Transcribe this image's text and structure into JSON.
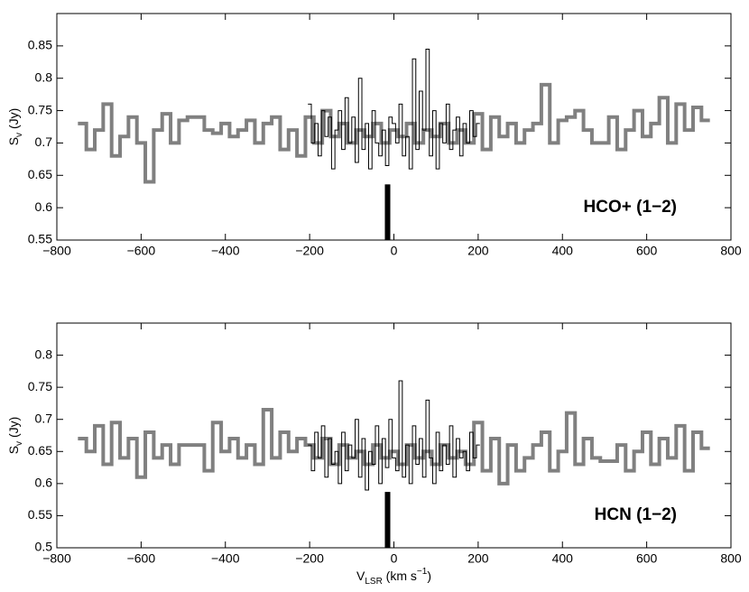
{
  "chart_data": [
    {
      "type": "step",
      "annotation": "HCO+ (1−2)",
      "y_label": {
        "main": "S",
        "sub": "v",
        "unit": " (Jy)"
      },
      "xlim": [
        -800,
        800
      ],
      "xticks": [
        {
          "value": -800,
          "label": "−800"
        },
        {
          "value": -600,
          "label": "−600"
        },
        {
          "value": -400,
          "label": "−400"
        },
        {
          "value": -200,
          "label": "−200"
        },
        0,
        200,
        400,
        600,
        800
      ],
      "ylim": [
        0.55,
        0.9
      ],
      "yticks": [
        0.55,
        0.6,
        0.65,
        0.7,
        0.75,
        0.8,
        0.85
      ],
      "bar": {
        "x": -15,
        "value": 0.636,
        "color": "#000000"
      },
      "series": [
        {
          "color": "#808080",
          "width": 4,
          "x": [
            -740,
            -720,
            -700,
            -680,
            -660,
            -640,
            -620,
            -600,
            -580,
            -560,
            -540,
            -520,
            -500,
            -480,
            -460,
            -440,
            -420,
            -400,
            -380,
            -360,
            -340,
            -320,
            -300,
            -280,
            -260,
            -240,
            -220,
            -200,
            -180,
            -160,
            -140,
            -120,
            -100,
            -80,
            -60,
            -40,
            -20,
            0,
            20,
            40,
            60,
            80,
            100,
            120,
            140,
            160,
            180,
            200,
            220,
            240,
            260,
            280,
            300,
            320,
            340,
            360,
            380,
            400,
            420,
            440,
            460,
            480,
            500,
            520,
            540,
            560,
            580,
            600,
            620,
            640,
            660,
            680,
            700,
            720,
            740
          ],
          "values": [
            0.73,
            0.69,
            0.72,
            0.76,
            0.68,
            0.71,
            0.74,
            0.7,
            0.64,
            0.72,
            0.745,
            0.7,
            0.735,
            0.74,
            0.74,
            0.72,
            0.715,
            0.73,
            0.71,
            0.72,
            0.735,
            0.7,
            0.73,
            0.74,
            0.69,
            0.72,
            0.68,
            0.74,
            0.7,
            0.75,
            0.71,
            0.73,
            0.7,
            0.72,
            0.71,
            0.73,
            0.7,
            0.72,
            0.71,
            0.73,
            0.7,
            0.72,
            0.71,
            0.73,
            0.7,
            0.72,
            0.7,
            0.745,
            0.69,
            0.74,
            0.71,
            0.73,
            0.7,
            0.72,
            0.73,
            0.79,
            0.7,
            0.735,
            0.74,
            0.75,
            0.72,
            0.7,
            0.7,
            0.74,
            0.69,
            0.72,
            0.75,
            0.71,
            0.73,
            0.77,
            0.7,
            0.76,
            0.72,
            0.755,
            0.735
          ]
        },
        {
          "color": "#000000",
          "width": 1,
          "x": [
            -200,
            -192,
            -184,
            -176,
            -168,
            -160,
            -152,
            -144,
            -136,
            -128,
            -120,
            -112,
            -104,
            -96,
            -88,
            -80,
            -72,
            -64,
            -56,
            -48,
            -40,
            -32,
            -24,
            -16,
            -8,
            0,
            8,
            16,
            24,
            32,
            40,
            48,
            56,
            64,
            72,
            80,
            88,
            96,
            104,
            112,
            120,
            128,
            136,
            144,
            152,
            160,
            168,
            176,
            184,
            192,
            200
          ],
          "values": [
            0.76,
            0.7,
            0.73,
            0.68,
            0.75,
            0.71,
            0.74,
            0.66,
            0.72,
            0.75,
            0.69,
            0.77,
            0.7,
            0.74,
            0.67,
            0.8,
            0.69,
            0.73,
            0.66,
            0.75,
            0.7,
            0.68,
            0.72,
            0.665,
            0.74,
            0.73,
            0.7,
            0.76,
            0.68,
            0.71,
            0.66,
            0.83,
            0.69,
            0.78,
            0.72,
            0.845,
            0.68,
            0.75,
            0.66,
            0.73,
            0.7,
            0.76,
            0.69,
            0.72,
            0.74,
            0.68,
            0.73,
            0.7,
            0.75,
            0.71,
            0.73
          ]
        }
      ]
    },
    {
      "type": "step",
      "annotation": "HCN (1−2)",
      "y_label": {
        "main": "S",
        "sub": "v",
        "unit": " (Jy)"
      },
      "x_label": {
        "main": "V",
        "sub": "LSR",
        "unit": " (km s",
        "sup": "−1",
        "close": ")"
      },
      "xlim": [
        -800,
        800
      ],
      "xticks": [
        {
          "value": -800,
          "label": "−800"
        },
        {
          "value": -600,
          "label": "−600"
        },
        {
          "value": -400,
          "label": "−400"
        },
        {
          "value": -200,
          "label": "−200"
        },
        0,
        200,
        400,
        600,
        800
      ],
      "ylim": [
        0.5,
        0.85
      ],
      "yticks": [
        0.5,
        0.55,
        0.6,
        0.65,
        0.7,
        0.75,
        0.8
      ],
      "bar": {
        "x": -15,
        "value": 0.587,
        "color": "#000000"
      },
      "series": [
        {
          "color": "#808080",
          "width": 4,
          "x": [
            -740,
            -720,
            -700,
            -680,
            -660,
            -640,
            -620,
            -600,
            -580,
            -560,
            -540,
            -520,
            -500,
            -480,
            -460,
            -440,
            -420,
            -400,
            -380,
            -360,
            -340,
            -320,
            -300,
            -280,
            -260,
            -240,
            -220,
            -200,
            -180,
            -160,
            -140,
            -120,
            -100,
            -80,
            -60,
            -40,
            -20,
            0,
            20,
            40,
            60,
            80,
            100,
            120,
            140,
            160,
            180,
            200,
            220,
            240,
            260,
            280,
            300,
            320,
            340,
            360,
            380,
            400,
            420,
            440,
            460,
            480,
            500,
            520,
            540,
            560,
            580,
            600,
            620,
            640,
            660,
            680,
            700,
            720,
            740
          ],
          "values": [
            0.67,
            0.65,
            0.69,
            0.63,
            0.695,
            0.64,
            0.67,
            0.61,
            0.68,
            0.64,
            0.66,
            0.63,
            0.66,
            0.66,
            0.66,
            0.62,
            0.695,
            0.65,
            0.67,
            0.64,
            0.66,
            0.63,
            0.715,
            0.64,
            0.68,
            0.65,
            0.67,
            0.66,
            0.64,
            0.67,
            0.63,
            0.66,
            0.64,
            0.65,
            0.63,
            0.66,
            0.64,
            0.65,
            0.63,
            0.66,
            0.64,
            0.65,
            0.63,
            0.66,
            0.64,
            0.65,
            0.63,
            0.695,
            0.62,
            0.67,
            0.6,
            0.66,
            0.62,
            0.64,
            0.66,
            0.68,
            0.62,
            0.65,
            0.71,
            0.63,
            0.67,
            0.64,
            0.635,
            0.635,
            0.66,
            0.62,
            0.65,
            0.68,
            0.63,
            0.67,
            0.64,
            0.69,
            0.62,
            0.68,
            0.655
          ]
        },
        {
          "color": "#000000",
          "width": 1,
          "x": [
            -200,
            -192,
            -184,
            -176,
            -168,
            -160,
            -152,
            -144,
            -136,
            -128,
            -120,
            -112,
            -104,
            -96,
            -88,
            -80,
            -72,
            -64,
            -56,
            -48,
            -40,
            -32,
            -24,
            -16,
            -8,
            0,
            8,
            16,
            24,
            32,
            40,
            48,
            56,
            64,
            72,
            80,
            88,
            96,
            104,
            112,
            120,
            128,
            136,
            144,
            152,
            160,
            168,
            176,
            184,
            192,
            200
          ],
          "values": [
            0.66,
            0.62,
            0.68,
            0.64,
            0.69,
            0.61,
            0.67,
            0.63,
            0.65,
            0.6,
            0.68,
            0.62,
            0.66,
            0.64,
            0.7,
            0.61,
            0.67,
            0.59,
            0.65,
            0.63,
            0.69,
            0.6,
            0.67,
            0.625,
            0.7,
            0.64,
            0.62,
            0.76,
            0.61,
            0.66,
            0.6,
            0.69,
            0.63,
            0.67,
            0.61,
            0.73,
            0.64,
            0.6,
            0.68,
            0.62,
            0.66,
            0.63,
            0.69,
            0.61,
            0.67,
            0.64,
            0.65,
            0.62,
            0.68,
            0.64,
            0.66
          ]
        }
      ]
    }
  ]
}
